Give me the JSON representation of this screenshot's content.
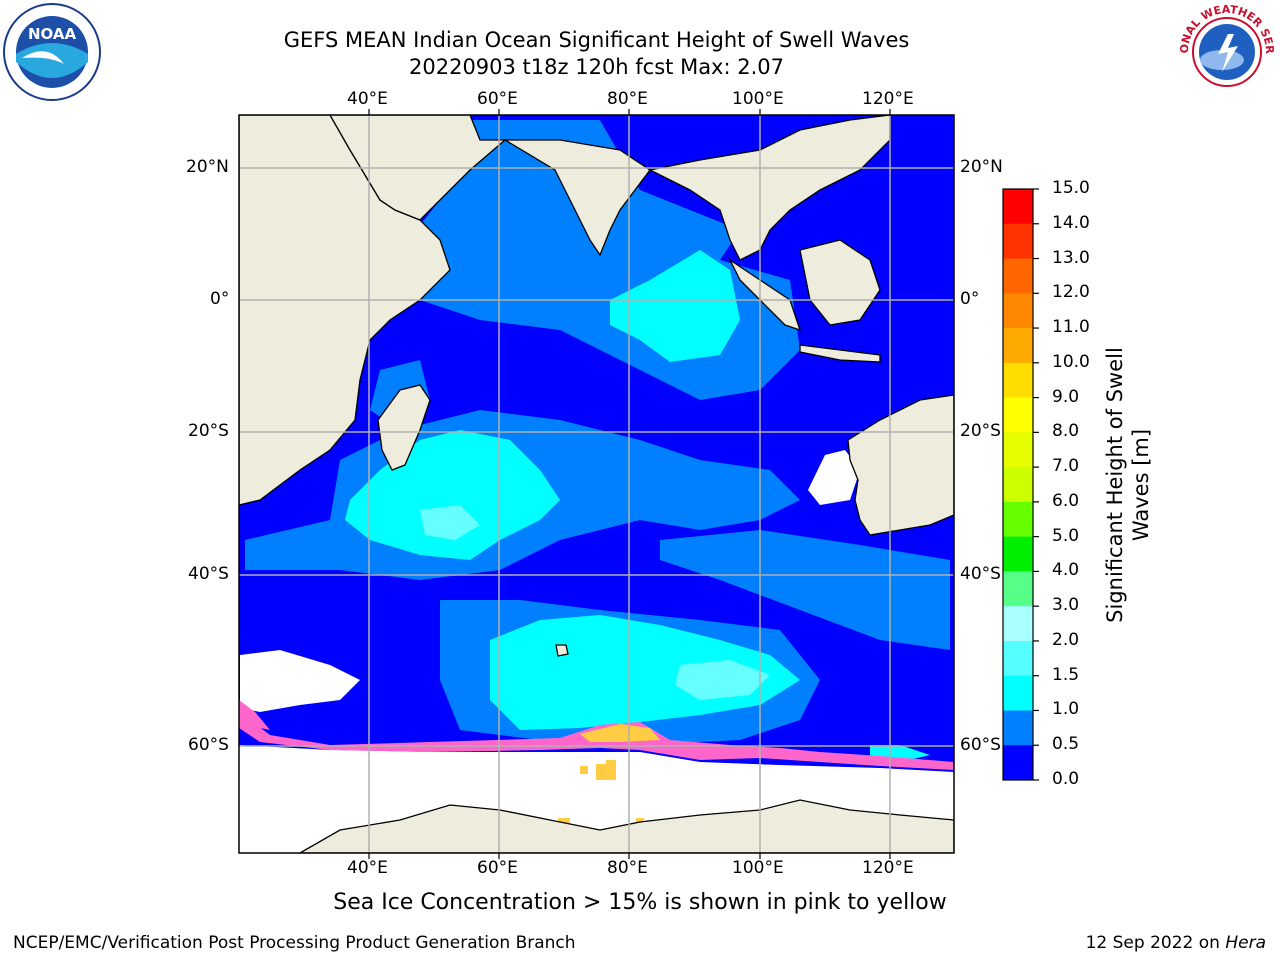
{
  "title": {
    "line1": "GEFS MEAN Indian Ocean Significant Height of Swell Waves",
    "line2": "20220903 t18z 120h fcst   Max: 2.07"
  },
  "map": {
    "lon_labels": [
      "40°E",
      "60°E",
      "80°E",
      "100°E",
      "120°E"
    ],
    "lat_labels": [
      "20°N",
      "0°",
      "20°S",
      "40°S",
      "60°S"
    ],
    "extent": {
      "lon": [
        20,
        130
      ],
      "lat": [
        -72,
        28
      ]
    },
    "colors": {
      "ocean_deep": "#0000ff",
      "ocean_light": "#0080ff",
      "swell_cyan": "#00ffff",
      "land": "#eeecdc",
      "ice_pink": "#ff66cc",
      "ice_yellow": "#ffcc44"
    }
  },
  "colorbar": {
    "label": "Significant Height of Swell Waves [m]",
    "ticks": [
      "15.0",
      "14.0",
      "13.0",
      "12.0",
      "11.0",
      "10.0",
      "9.0",
      "8.0",
      "7.0",
      "6.0",
      "5.0",
      "4.0",
      "3.0",
      "2.0",
      "1.5",
      "1.0",
      "0.5",
      "0.0"
    ],
    "colors": [
      "#ff0000",
      "#ff3300",
      "#ff6600",
      "#ff8800",
      "#ffaa00",
      "#ffdd00",
      "#ffff00",
      "#e6ff00",
      "#ccff00",
      "#66ff00",
      "#00ee00",
      "#55ff88",
      "#aaffff",
      "#55ffff",
      "#00ffff",
      "#0080ff",
      "#0000ff"
    ]
  },
  "logos": {
    "noaa": "NOAA",
    "nws": "NATIONAL WEATHER SERVICE"
  },
  "footer": {
    "ice_note": "Sea Ice Concentration > 15% is shown in pink to yellow",
    "credit": "NCEP/EMC/Verification Post Processing Product Generation Branch",
    "date": "12 Sep 2022 on",
    "machine": "Hera"
  }
}
